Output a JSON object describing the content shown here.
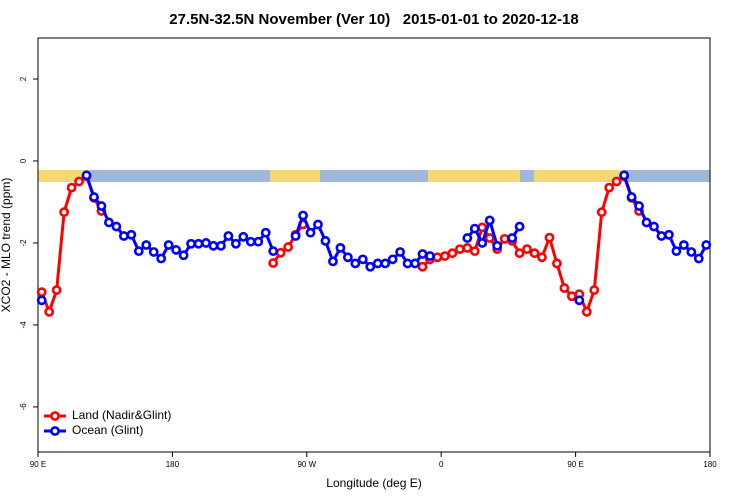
{
  "chart_data": {
    "type": "line",
    "title": "27.5N-32.5N November (Ver 10)   2015-01-01 to 2020-12-18",
    "x_label": "Longitude (deg E)",
    "y_label": "XCO2 - MLO trend (ppm)",
    "xlim": [
      90,
      540
    ],
    "xticks": [
      {
        "value": 90,
        "label": "90 E"
      },
      {
        "value": 180,
        "label": "180"
      },
      {
        "value": 270,
        "label": "90 W"
      },
      {
        "value": 360,
        "label": "0"
      },
      {
        "value": 450,
        "label": "90 E"
      },
      {
        "value": 540,
        "label": "180"
      }
    ],
    "ylim": [
      -7.1,
      3.0
    ],
    "yticks": [
      -6,
      -4,
      -2,
      0,
      2
    ],
    "legend": "bottomleft",
    "series": [
      {
        "name": "Land (Nadir&Glint)",
        "color": "#ff0000",
        "x": [
          92.5,
          97.5,
          102.5,
          107.5,
          112.5,
          117.5,
          122.5,
          127.5,
          132.5,
          137.5,
          247.5,
          252.5,
          257.5,
          262.5,
          267.5,
          272.5,
          347.5,
          352.5,
          357.5,
          362.5,
          367.5,
          372.5,
          377.5,
          382.5,
          387.5,
          392.5,
          397.5,
          402.5,
          407.5,
          412.5,
          417.5,
          422.5,
          427.5,
          432.5,
          437.5,
          442.5,
          447.5,
          452.5,
          457.5,
          462.5,
          467.5,
          472.5,
          477.5,
          482.5,
          487.5,
          492.5
        ],
        "values": [
          -3.2,
          -3.68,
          -3.15,
          -1.25,
          -0.65,
          -0.5,
          -0.37,
          -0.9,
          -1.22,
          null,
          -2.49,
          -2.24,
          -2.1,
          -1.8,
          -1.55,
          null,
          -2.58,
          -2.4,
          -2.35,
          -2.32,
          -2.25,
          -2.15,
          -2.12,
          -2.2,
          -1.62,
          -1.88,
          -2.15,
          -1.9,
          -1.95,
          -2.25,
          -2.15,
          -2.25,
          -2.35,
          -1.87,
          -2.5,
          -3.1,
          -3.3,
          -3.25,
          -3.68,
          -3.15,
          -1.25,
          -0.65,
          -0.5,
          -0.37,
          -0.9,
          -1.22
        ]
      },
      {
        "name": "Ocean (Glint)",
        "color": "#0000ff",
        "x": [
          92.5,
          97.5,
          122.5,
          127.5,
          132.5,
          137.5,
          142.5,
          147.5,
          152.5,
          157.5,
          162.5,
          167.5,
          172.5,
          177.5,
          182.5,
          187.5,
          192.5,
          197.5,
          202.5,
          207.5,
          212.5,
          217.5,
          222.5,
          227.5,
          232.5,
          237.5,
          242.5,
          247.5,
          252.5,
          262.5,
          267.5,
          272.5,
          277.5,
          282.5,
          287.5,
          292.5,
          297.5,
          302.5,
          307.5,
          312.5,
          317.5,
          322.5,
          327.5,
          332.5,
          337.5,
          342.5,
          347.5,
          352.5,
          357.5,
          377.5,
          382.5,
          387.5,
          392.5,
          397.5,
          402.5,
          407.5,
          412.5,
          417.5,
          452.5,
          457.5,
          482.5,
          487.5,
          492.5,
          497.5,
          502.5,
          507.5,
          512.5,
          517.5,
          522.5,
          527.5,
          532.5,
          537.5
        ],
        "values": [
          -3.4,
          null,
          -0.35,
          -0.88,
          -1.1,
          -1.5,
          -1.6,
          -1.83,
          -1.8,
          -2.2,
          -2.05,
          -2.22,
          -2.38,
          -2.05,
          -2.17,
          -2.3,
          -2.02,
          -2.02,
          -2.0,
          -2.07,
          -2.07,
          -1.83,
          -2.02,
          -1.85,
          -1.97,
          -1.97,
          -1.75,
          -2.2,
          null,
          -1.83,
          -1.33,
          -1.75,
          -1.55,
          -1.95,
          -2.45,
          -2.12,
          -2.35,
          -2.5,
          -2.4,
          -2.58,
          -2.5,
          -2.5,
          -2.4,
          -2.22,
          -2.5,
          -2.5,
          -2.27,
          -2.32,
          null,
          -1.88,
          -1.65,
          -2.0,
          -1.45,
          -2.07,
          null,
          -1.88,
          -1.6,
          null,
          -3.4,
          null,
          -0.35,
          -0.88,
          -1.1,
          -1.5,
          -1.6,
          -1.83,
          -1.8,
          -2.2,
          -2.05,
          -2.22,
          -2.38,
          -2.05
        ]
      }
    ]
  }
}
